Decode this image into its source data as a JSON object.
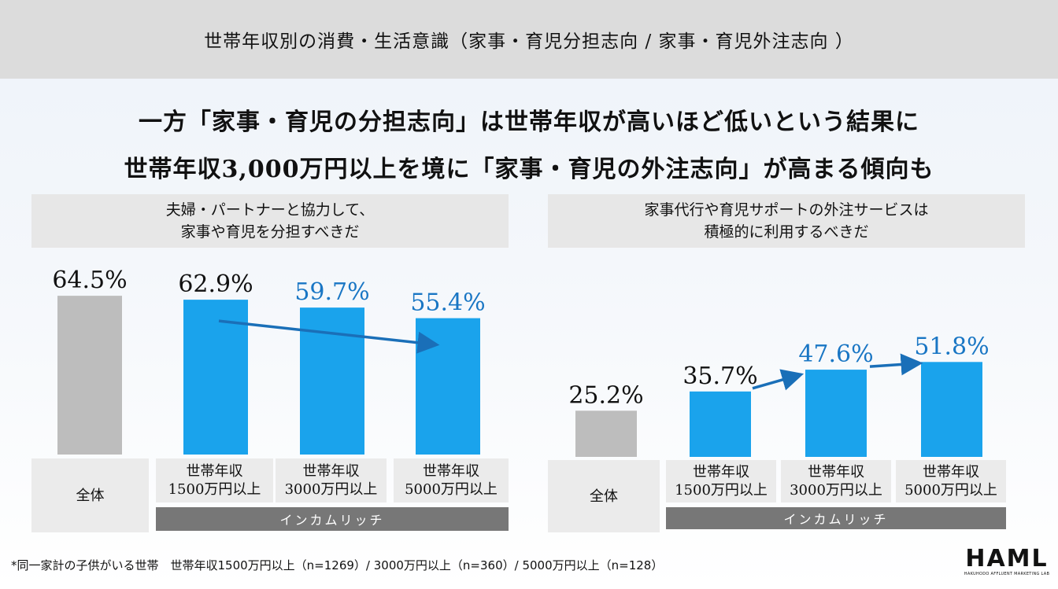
{
  "header": {
    "title": "世帯年収別の消費・生活意識（家事・育児分担志向 / 家事・育児外注志向 ）"
  },
  "headline": {
    "line1": "一方「家事・育児の分担志向」は世帯年収が高いほど低いという結果に",
    "line2": "世帯年収3,000万円以上を境に「家事・育児の外注志向」が高まる傾向も"
  },
  "left_panel": {
    "title_line1": "夫婦・パートナーと協力して、",
    "title_line2": "家事や育児を分担すべきだ"
  },
  "right_panel": {
    "title_line1": "家事代行や育児サポートの外注サービスは",
    "title_line2": "積極的に利用するべきだ"
  },
  "categories": [
    {
      "line1": "全体",
      "line2": ""
    },
    {
      "line1": "世帯年収",
      "line2": "1500万円以上"
    },
    {
      "line1": "世帯年収",
      "line2": "3000万円以上"
    },
    {
      "line1": "世帯年収",
      "line2": "5000万円以上"
    }
  ],
  "group_label": "インカムリッチ",
  "footnote": "*同一家計の子供がいる世帯　世帯年収1500万円以上（n=1269）/ 3000万円以上（n=360）/ 5000万円以上（n=128）",
  "logo": {
    "text": "HAML",
    "subtext": "HAKUHODO AFFLUENT MARKETING LAB"
  },
  "colors": {
    "gray_bar": "#bdbdbd",
    "blue_bar": "#1aa3ec",
    "highlight_text": "#1976c4",
    "arrow": "#1a6fb8",
    "group_bar": "#777777"
  },
  "chart_data": [
    {
      "type": "bar",
      "title": "夫婦・パートナーと協力して、家事や育児を分担すべきだ",
      "categories": [
        "全体",
        "世帯年収1500万円以上",
        "世帯年収3000万円以上",
        "世帯年収5000万円以上"
      ],
      "values": [
        64.5,
        62.9,
        59.7,
        55.4
      ],
      "labels": [
        "64.5%",
        "62.9%",
        "59.7%",
        "55.4%"
      ],
      "bar_colors": [
        "gray",
        "blue",
        "blue",
        "blue"
      ],
      "label_colors": [
        "black",
        "black",
        "blue",
        "blue"
      ],
      "ylim": [
        0,
        100
      ],
      "annotations": [
        "downward arrow from 1500万円以上 to 5000万円以上"
      ]
    },
    {
      "type": "bar",
      "title": "家事代行や育児サポートの外注サービスは積極的に利用するべきだ",
      "categories": [
        "全体",
        "世帯年収1500万円以上",
        "世帯年収3000万円以上",
        "世帯年収5000万円以上"
      ],
      "values": [
        25.2,
        35.7,
        47.6,
        51.8
      ],
      "labels": [
        "25.2%",
        "35.7%",
        "47.6%",
        "51.8%"
      ],
      "bar_colors": [
        "gray",
        "blue",
        "blue",
        "blue"
      ],
      "label_colors": [
        "black",
        "black",
        "blue",
        "blue"
      ],
      "ylim": [
        0,
        100
      ],
      "annotations": [
        "upward arrow 1500万円以上→3000万円以上",
        "upward arrow 3000万円以上→5000万円以上"
      ]
    }
  ]
}
